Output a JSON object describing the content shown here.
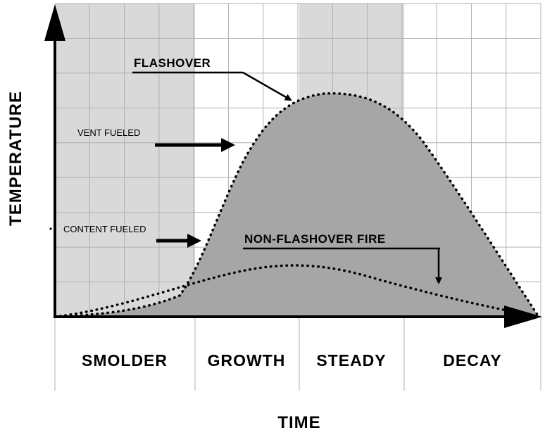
{
  "axes": {
    "y_title": "TEMPERATURE",
    "x_title": "TIME"
  },
  "phases": [
    {
      "label": "SMOLDER",
      "shaded": true
    },
    {
      "label": "GROWTH",
      "shaded": false
    },
    {
      "label": "STEADY",
      "shaded": true
    },
    {
      "label": "DECAY",
      "shaded": false
    }
  ],
  "annotations": {
    "flashover": "FLASHOVER",
    "vent_fueled": "VENT FUELED",
    "content_fueled": "CONTENT FUELED",
    "non_flashover": "NON-FLASHOVER FIRE"
  },
  "curves": {
    "flashover_curve": "flashover-fire",
    "non_flashover_curve": "non-flashover-fire"
  },
  "colors": {
    "phase_shade": "#d9d9d9",
    "curve_fill": "#a6a6a6",
    "grid": "#b0b0b0",
    "ink": "#000000"
  }
}
